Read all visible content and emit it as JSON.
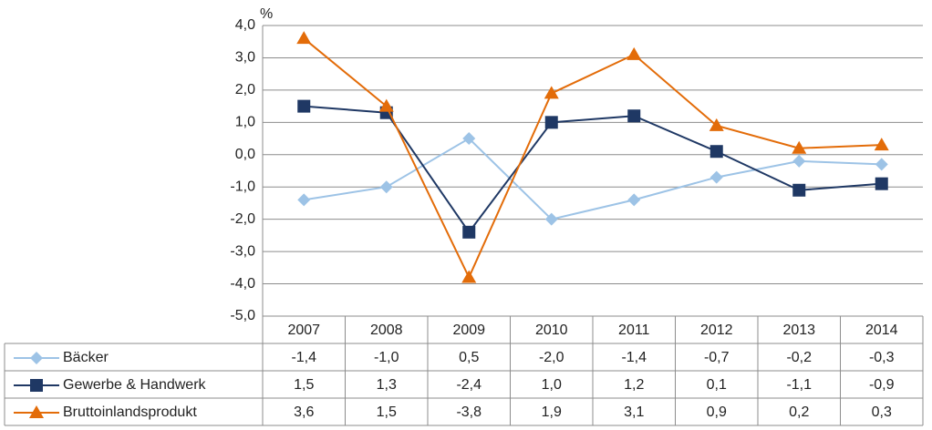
{
  "chart_data": {
    "type": "line",
    "y_label": "%",
    "categories": [
      "2007",
      "2008",
      "2009",
      "2010",
      "2011",
      "2012",
      "2013",
      "2014"
    ],
    "series": [
      {
        "name": "Bäcker",
        "color": "#9dc3e6",
        "marker": "diamond",
        "values": [
          -1.4,
          -1.0,
          0.5,
          -2.0,
          -1.4,
          -0.7,
          -0.2,
          -0.3
        ],
        "value_labels": [
          "-1,4",
          "-1,0",
          "0,5",
          "-2,0",
          "-1,4",
          "-0,7",
          "-0,2",
          "-0,3"
        ]
      },
      {
        "name": "Gewerbe & Handwerk",
        "color": "#1f3864",
        "marker": "square",
        "values": [
          1.5,
          1.3,
          -2.4,
          1.0,
          1.2,
          0.1,
          -1.1,
          -0.9
        ],
        "value_labels": [
          "1,5",
          "1,3",
          "-2,4",
          "1,0",
          "1,2",
          "0,1",
          "-1,1",
          "-0,9"
        ]
      },
      {
        "name": "Bruttoinlandsprodukt",
        "color": "#e36c09",
        "marker": "triangle",
        "values": [
          3.6,
          1.5,
          -3.8,
          1.9,
          3.1,
          0.9,
          0.2,
          0.3
        ],
        "value_labels": [
          "3,6",
          "1,5",
          "-3,8",
          "1,9",
          "3,1",
          "0,9",
          "0,2",
          "0,3"
        ]
      }
    ],
    "ylim": [
      -5,
      4
    ],
    "yticks": [
      {
        "value": 4,
        "label": "4,0"
      },
      {
        "value": 3,
        "label": "3,0"
      },
      {
        "value": 2,
        "label": "2,0"
      },
      {
        "value": 1,
        "label": "1,0"
      },
      {
        "value": 0,
        "label": "0,0"
      },
      {
        "value": -1,
        "label": "-1,0"
      },
      {
        "value": -2,
        "label": "-2,0"
      },
      {
        "value": -3,
        "label": "-3,0"
      },
      {
        "value": -4,
        "label": "-4,0"
      },
      {
        "value": -5,
        "label": "-5,0"
      }
    ],
    "grid": true,
    "data_table": true
  }
}
